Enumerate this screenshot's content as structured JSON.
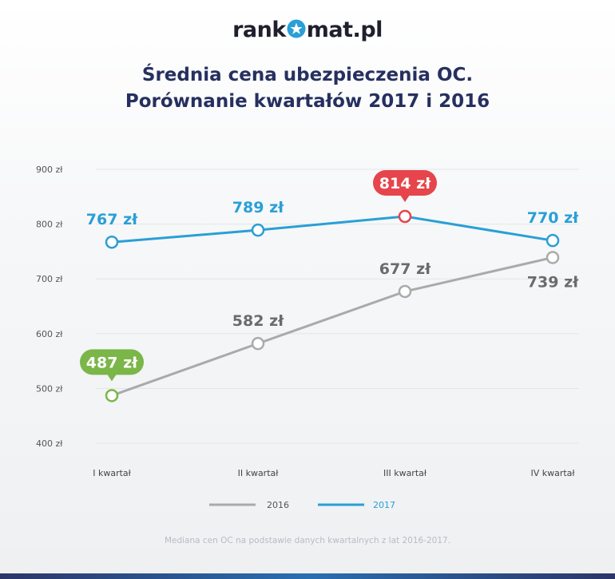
{
  "brand": {
    "pre": "rank",
    "post": "mat.pl"
  },
  "title_line1": "Średnia cena ubezpieczenia OC.",
  "title_line2": "Porównanie kwartałów 2017 i 2016",
  "note": "Mediana cen OC na podstawie danych kwartalnych z lat 2016-2017.",
  "colors": {
    "series_2016": "#aaaaaa",
    "series_2017": "#2a9fd6",
    "highlight_max": "#e5454b",
    "highlight_min": "#7ab648",
    "label_2016": "#6b6b6b",
    "grid": "#e3e5e8"
  },
  "chart_data": {
    "type": "line",
    "categories": [
      "I kwartał",
      "II kwartał",
      "III kwartał",
      "IV kwartał"
    ],
    "series": [
      {
        "name": "2016",
        "values": [
          487,
          582,
          677,
          739
        ],
        "labels": [
          "487 zł",
          "582 zł",
          "677 zł",
          "739 zł"
        ]
      },
      {
        "name": "2017",
        "values": [
          767,
          789,
          814,
          770
        ],
        "labels": [
          "767 zł",
          "789 zł",
          "814 zł",
          "770 zł"
        ]
      }
    ],
    "ylim": [
      400,
      900
    ],
    "yticks": [
      900,
      800,
      700,
      600,
      500,
      400
    ],
    "ytick_labels": [
      "900 zł",
      "800 zł",
      "700 zł",
      "600 zł",
      "500 zł",
      "400 zł"
    ],
    "grid": true,
    "legend": "bottom-center",
    "highlight": {
      "max": "814 zł",
      "min": "487 zł"
    }
  }
}
